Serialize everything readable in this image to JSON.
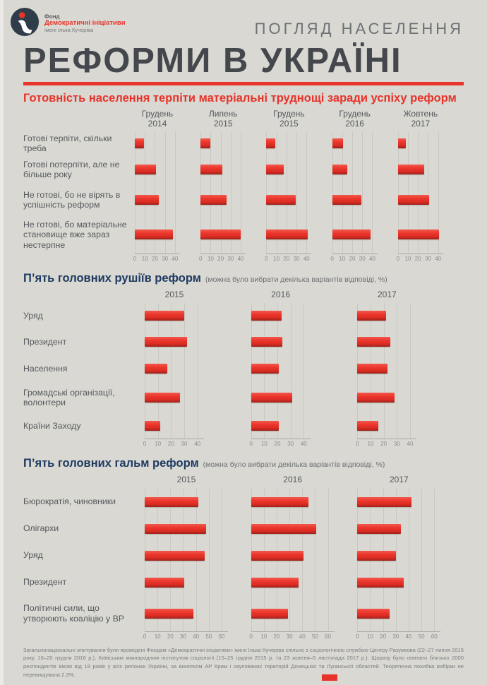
{
  "colors": {
    "background": "#d9d8d3",
    "accent_red": "#e8332a",
    "title_gray": "#44474b",
    "heading_navy": "#1e3a60",
    "text_gray": "#55585c",
    "tick_gray": "#8a8c8e"
  },
  "header": {
    "logo": {
      "line1": "Фонд",
      "line2": "Демократичні ініціативи",
      "line3": "імені Ілька Кучеріва"
    },
    "kicker": "ПОГЛЯД НАСЕЛЕННЯ",
    "title": "РЕФОРМИ В УКРАЇНІ"
  },
  "chart_data": [
    {
      "type": "bar",
      "orientation": "horizontal",
      "title": "Готовність населення терпіти матеріальні труднощі заради успіху реформ",
      "note": "",
      "heading_color": "#e8332a",
      "unit": "%",
      "categories": [
        "Готові терпіти, скільки треба",
        "Готові потерпіти, але не більше року",
        "Не готові, бо не вірять в успішність реформ",
        "Не готові, бо матеріальне становище вже зараз нестерпне"
      ],
      "series": [
        {
          "name": "Грудень 2014",
          "values": [
            9,
            21,
            24,
            38
          ]
        },
        {
          "name": "Липень 2015",
          "values": [
            10,
            22,
            26,
            40
          ]
        },
        {
          "name": "Грудень 2015",
          "values": [
            9,
            17,
            29,
            41
          ]
        },
        {
          "name": "Грудень 2016",
          "values": [
            11,
            15,
            29,
            38
          ]
        },
        {
          "name": "Жовтень 2017",
          "values": [
            8,
            26,
            31,
            41
          ]
        }
      ],
      "xticks": [
        0,
        10,
        20,
        30,
        40
      ],
      "xlim": [
        0,
        45
      ],
      "grid": true,
      "legend": "none"
    },
    {
      "type": "bar",
      "orientation": "horizontal",
      "title": "П’ять головних рушіїв реформ",
      "note": "(можна було вибрати декілька варіантів відповіді, %)",
      "heading_color": "#1e3a60",
      "unit": "%",
      "categories": [
        "Уряд",
        "Президент",
        "Населення",
        "Громадські організації, волонтери",
        "Країни Заходу"
      ],
      "series": [
        {
          "name": "2015",
          "values": [
            30,
            32,
            17,
            27,
            12
          ]
        },
        {
          "name": "2016",
          "values": [
            23,
            24,
            21,
            31,
            21
          ]
        },
        {
          "name": "2017",
          "values": [
            22,
            25,
            23,
            28,
            16
          ]
        }
      ],
      "xticks": [
        0,
        10,
        20,
        30,
        40
      ],
      "xlim": [
        0,
        45
      ],
      "grid": true,
      "legend": "none"
    },
    {
      "type": "bar",
      "orientation": "horizontal",
      "title": "П’ять головних гальм реформ",
      "note": "(можна було вибрати декілька варіантів відповіді, %)",
      "heading_color": "#1e3a60",
      "unit": "%",
      "categories": [
        "Бюрократія, чиновники",
        "Олігархи",
        "Уряд",
        "Президент",
        "Політичні сили, що утворюють коаліцію у ВР"
      ],
      "series": [
        {
          "name": "2015",
          "values": [
            42,
            48,
            47,
            31,
            38
          ]
        },
        {
          "name": "2016",
          "values": [
            45,
            51,
            41,
            37,
            29
          ]
        },
        {
          "name": "2017",
          "values": [
            42,
            34,
            30,
            36,
            25
          ]
        }
      ],
      "xticks": [
        0,
        10,
        20,
        30,
        40,
        50,
        60
      ],
      "xlim": [
        0,
        65
      ],
      "grid": true,
      "legend": "none"
    }
  ],
  "footnote": "Загальнонаціональні опитування були проведені Фондом «Демократичні ініціативи» імені Ілька Кучеріва спільно з соціологічною службою Центру Разумкова (22–27 липня 2015 року, 16–20 грудня 2016 р.), Київським міжнародним інститутом соціології (15–25 грудня 2015 р. та 23 жовтня–5 листопада 2017 р.). Щоразу було опитано близько 2000 респондентів віком від 18 років у всіх регіонах України, за винятком АР Крим і окупованих територій Донецької та Луганської областей. Теоретична похибка вибірки не перевищувала 2,3%."
}
